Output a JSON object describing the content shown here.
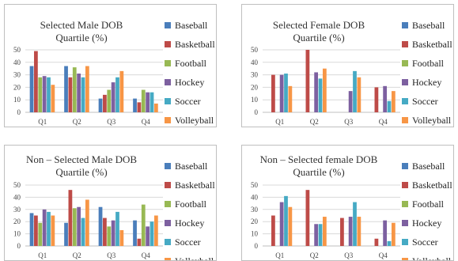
{
  "chart_data": [
    {
      "type": "bar",
      "title_line1": "Selected Male DOB",
      "title_line2": "Quartile (%)",
      "categories": [
        "Q1",
        "Q2",
        "Q3",
        "Q4"
      ],
      "y_ticks": [
        "0",
        "10",
        "20",
        "30",
        "40",
        "50"
      ],
      "ylim": [
        0,
        50
      ],
      "grid": true,
      "legend_position": "right",
      "series": [
        {
          "name": "Baseball",
          "values": [
            37,
            37,
            11,
            11
          ]
        },
        {
          "name": "Basketball",
          "values": [
            49,
            28,
            14,
            8
          ]
        },
        {
          "name": "Football",
          "values": [
            28,
            36,
            18,
            18
          ]
        },
        {
          "name": "Hockey",
          "values": [
            29,
            31,
            24,
            16
          ]
        },
        {
          "name": "Soccer",
          "values": [
            28,
            28,
            28,
            16
          ]
        },
        {
          "name": "Volleyball",
          "values": [
            22,
            37,
            33,
            7
          ]
        }
      ]
    },
    {
      "type": "bar",
      "title_line1": "Selected Female DOB",
      "title_line2": "Quartile (%)",
      "categories": [
        "Q1",
        "Q2",
        "Q3",
        "Q4"
      ],
      "y_ticks": [
        "0",
        "10",
        "20",
        "30",
        "40",
        "50"
      ],
      "ylim": [
        0,
        50
      ],
      "grid": true,
      "legend_position": "right",
      "series": [
        {
          "name": "Baseball",
          "values": [
            0,
            0,
            0,
            0
          ]
        },
        {
          "name": "Basketball",
          "values": [
            30,
            50,
            0,
            20
          ]
        },
        {
          "name": "Football",
          "values": [
            0,
            0,
            0,
            0
          ]
        },
        {
          "name": "Hockey",
          "values": [
            30,
            32,
            17,
            21
          ]
        },
        {
          "name": "Soccer",
          "values": [
            31,
            27,
            33,
            9
          ]
        },
        {
          "name": "Volleyball",
          "values": [
            21,
            35,
            28,
            17
          ]
        }
      ]
    },
    {
      "type": "bar",
      "title_line1": "Non – Selected Male DOB",
      "title_line2": "Quartile (%)",
      "categories": [
        "Q1",
        "Q2",
        "Q3",
        "Q4"
      ],
      "y_ticks": [
        "0",
        "10",
        "20",
        "30",
        "40",
        "50"
      ],
      "ylim": [
        0,
        50
      ],
      "grid": true,
      "legend_position": "right",
      "series": [
        {
          "name": "Baseball",
          "values": [
            27,
            19,
            32,
            21
          ]
        },
        {
          "name": "Basketball",
          "values": [
            25,
            46,
            23,
            6
          ]
        },
        {
          "name": "Football",
          "values": [
            19,
            31,
            16,
            34
          ]
        },
        {
          "name": "Hockey",
          "values": [
            30,
            32,
            21,
            16
          ]
        },
        {
          "name": "Soccer",
          "values": [
            28,
            23,
            28,
            20
          ]
        },
        {
          "name": "Volleyball",
          "values": [
            25,
            38,
            13,
            25
          ]
        }
      ]
    },
    {
      "type": "bar",
      "title_line1": "Non – Selected female DOB",
      "title_line2": "Quartile (%)",
      "categories": [
        "Q1",
        "Q2",
        "Q3",
        "Q4"
      ],
      "y_ticks": [
        "0",
        "10",
        "20",
        "30",
        "40",
        "50"
      ],
      "ylim": [
        0,
        50
      ],
      "grid": true,
      "legend_position": "right",
      "series": [
        {
          "name": "Baseball",
          "values": [
            0,
            0,
            0,
            0
          ]
        },
        {
          "name": "Basketball",
          "values": [
            25,
            46,
            23,
            6
          ]
        },
        {
          "name": "Football",
          "values": [
            0,
            0,
            0,
            0
          ]
        },
        {
          "name": "Hockey",
          "values": [
            36,
            18,
            24,
            21
          ]
        },
        {
          "name": "Soccer",
          "values": [
            41,
            18,
            36,
            4
          ]
        },
        {
          "name": "Volleyball",
          "values": [
            32,
            24,
            24,
            19
          ]
        }
      ]
    }
  ],
  "colors": {
    "Baseball": "#4a7ebb",
    "Basketball": "#be4b48",
    "Football": "#98b954",
    "Hockey": "#7d60a0",
    "Soccer": "#46aac4",
    "Volleyball": "#f79646"
  },
  "gridline_color": "#d9d9d9",
  "axis_color": "#bfbfbf"
}
